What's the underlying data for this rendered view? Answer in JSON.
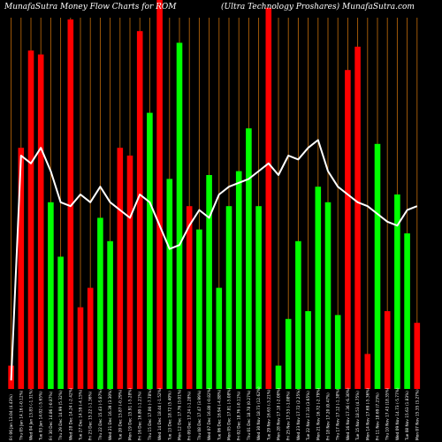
{
  "header": {
    "left": "MunafaSutra  Money Flow  Charts for ROM",
    "right": "(Ultra  Technology Proshares)  MunafaSutra.com"
  },
  "chart_data": {
    "type": "bar",
    "categories": [
      "Fri 06 Jan 13.04 (4.43%)",
      "Thu 05 Jan 14.16 (-0.12%)",
      "Wed 04 Jan 13.83 (-1.31%)",
      "Tue 03 Jan 14.02 (-5.65%)",
      "Fri 30 Dec 14.86 (-0.87%)",
      "Thu 29 Dec 14.99 (5.32%)",
      "Wed 28 Dec 14.24 (-2.42%)",
      "Tue 27 Dec 14.59 (-4.15%)",
      "Fri 23 Dec 15.22 (-1.36%)",
      "Thu 22 Dec 15.43 (-5.87%)",
      "Wed 21 Dec 16.39 (3.30%)",
      "Tue 20 Dec 15.87 (-0.29%)",
      "Mon 19 Dec 15.91 (-5.28%)",
      "Fri 16 Dec 16.80 (-1.21%)",
      "Thu 15 Dec 17.00 (-7.78%)",
      "Wed 14 Dec 18.44 (-1.52%)",
      "Tue 13 Dec 18.72 (5.40%)",
      "Mon 12 Dec 17.76 (3.01%)",
      "Fri 09 Dec 17.24 (-1.28%)",
      "Thu 08 Dec 17.47 (3.99%)",
      "Wed 07 Dec 16.80 (-0.82%)",
      "Tue 06 Dec 16.94 (-4.88%)",
      "Mon 05 Dec 17.81 (-5.08%)",
      "Fri 02 Dec 18.76 (-0.11%)",
      "Thu 01 Dec 18.78 (0.27%)",
      "Wed 30 Nov 18.73 (12.62%)",
      "Tue 29 Nov 16.63 (-3.21%)",
      "Mon 28 Nov 17.18 (-2.00%)",
      "Fri 25 Nov 17.53 (-1.08%)",
      "Wed 23 Nov 17.72 (2.25%)",
      "Tue 22 Nov 17.33 (3.65%)",
      "Mon 21 Nov 16.72 (-2.79%)",
      "Fri 18 Nov 17.20 (0.47%)",
      "Thu 17 Nov 17.12 (-1.38%)",
      "Wed 16 Nov 17.36 (-6.30%)",
      "Tue 15 Nov 18.53 (4.75%)",
      "Mon 14 Nov 17.69 (-5.36%)",
      "Fri 11 Nov 18.69 (7.23%)",
      "Thu 10 Nov 17.43 (18.35%)",
      "Wed 09 Nov 14.73 (-5.77%)",
      "Tue 08 Nov 15.63 (1.83%)",
      "Mon 07 Nov 15.35 (3.27%)"
    ],
    "series": [
      {
        "values": [
          6,
          62,
          87,
          86,
          48,
          34,
          95,
          21,
          26,
          44,
          38,
          62,
          60,
          92,
          71,
          100,
          54,
          89,
          47,
          41,
          55,
          26,
          47,
          56,
          67,
          47,
          98,
          6,
          18,
          38,
          20,
          52,
          48,
          19,
          82,
          88,
          9,
          63,
          20,
          50,
          40,
          17
        ],
        "colors": [
          "r",
          "r",
          "r",
          "r",
          "g",
          "g",
          "r",
          "r",
          "r",
          "g",
          "g",
          "r",
          "r",
          "r",
          "g",
          "r",
          "g",
          "g",
          "r",
          "g",
          "g",
          "g",
          "g",
          "g",
          "g",
          "g",
          "r",
          "g",
          "g",
          "g",
          "g",
          "g",
          "g",
          "g",
          "r",
          "r",
          "r",
          "g",
          "r",
          "g",
          "g",
          "r"
        ]
      },
      {
        "values": [
          2.2,
          60,
          58,
          62,
          56,
          48,
          47,
          50,
          48,
          52,
          48,
          46,
          44,
          50,
          48,
          42,
          36,
          37,
          42,
          46,
          44,
          50,
          52,
          53,
          54,
          56,
          58,
          55,
          60,
          59,
          62,
          64,
          56,
          52,
          50,
          48,
          47,
          45,
          43,
          42,
          46,
          47
        ]
      }
    ],
    "ylim": [
      0,
      100
    ],
    "grid": true
  }
}
